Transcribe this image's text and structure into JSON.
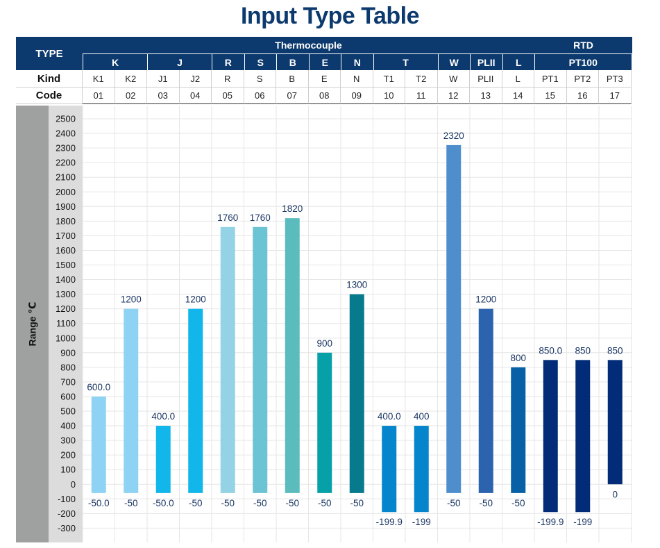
{
  "title": "Input Type Table",
  "header": {
    "type_label": "TYPE",
    "kind_label": "Kind",
    "code_label": "Code",
    "range_label": "Range ℃",
    "thermocouple_label": "Thermocouple",
    "rtd_label": "RTD",
    "pt100_label": "PT100",
    "groups": [
      "K",
      "J",
      "R",
      "S",
      "B",
      "E",
      "N",
      "T",
      "W",
      "PLII",
      "L"
    ],
    "kinds": [
      "K1",
      "K2",
      "J1",
      "J2",
      "R",
      "S",
      "B",
      "E",
      "N",
      "T1",
      "T2",
      "W",
      "PLII",
      "L",
      "PT1",
      "PT2",
      "PT3"
    ],
    "codes": [
      "01",
      "02",
      "03",
      "04",
      "05",
      "06",
      "07",
      "08",
      "09",
      "10",
      "11",
      "12",
      "13",
      "14",
      "15",
      "16",
      "17"
    ]
  },
  "chart_data": {
    "type": "bar",
    "subtype": "floating range bars",
    "ylabel": "Range ℃",
    "ylim": [
      -300,
      2500
    ],
    "ytick_step": 100,
    "grid": true,
    "categories": [
      "K1",
      "K2",
      "J1",
      "J2",
      "R",
      "S",
      "B",
      "E",
      "N",
      "T1",
      "T2",
      "W",
      "PLII",
      "L",
      "PT1",
      "PT2",
      "PT3"
    ],
    "min": [
      -50.0,
      -50,
      -50.0,
      -50,
      -50,
      -50,
      -50,
      -50,
      -50,
      -199.9,
      -199,
      -50,
      -50,
      -50,
      -199.9,
      -199,
      0
    ],
    "max": [
      600.0,
      1200,
      400.0,
      1200,
      1760,
      1760,
      1820,
      900,
      1300,
      400.0,
      400,
      2320,
      1200,
      800,
      850.0,
      850,
      850
    ],
    "min_labels": [
      "-50.0",
      "-50",
      "-50.0",
      "-50",
      "-50",
      "-50",
      "-50",
      "-50",
      "-50",
      "-199.9",
      "-199",
      "-50",
      "-50",
      "-50",
      "-199.9",
      "-199",
      "0"
    ],
    "max_labels": [
      "600.0",
      "1200",
      "400.0",
      "1200",
      "1760",
      "1760",
      "1820",
      "900",
      "1300",
      "400.0",
      "400",
      "2320",
      "1200",
      "800",
      "850.0",
      "850",
      "850"
    ],
    "colors": [
      "#8fd3f4",
      "#8fd3f4",
      "#11b6ea",
      "#11b6ea",
      "#93d3e5",
      "#6cc3d4",
      "#5bbcbd",
      "#06a0a8",
      "#077a8d",
      "#0585cc",
      "#0585cc",
      "#4f8ecc",
      "#2c63ae",
      "#0861a6",
      "#032c78",
      "#032c78",
      "#032c78"
    ]
  }
}
